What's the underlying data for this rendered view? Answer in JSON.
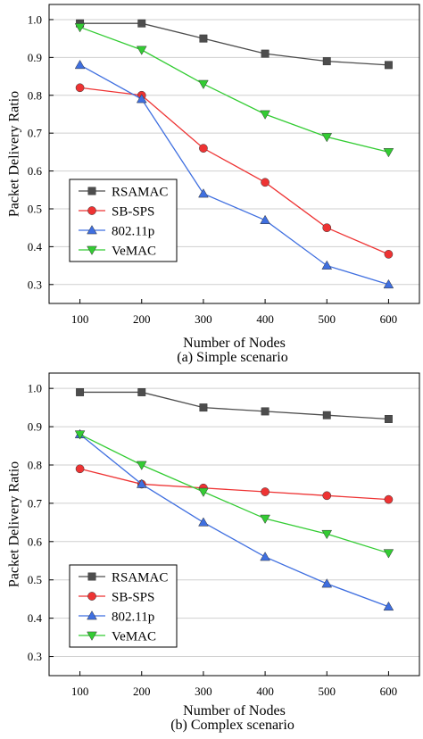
{
  "colors": {
    "RSAMAC": "#4d4d4d",
    "SB-SPS": "#ee3333",
    "802.11p": "#3f6fe0",
    "VeMAC": "#33cc33",
    "grid": "#cfcfcf",
    "axis": "#000000"
  },
  "chart_data": [
    {
      "type": "line",
      "x": [
        100,
        200,
        300,
        400,
        500,
        600
      ],
      "xlabel": "Number of Nodes",
      "ylabel": "Packet Delivery Ratio",
      "caption": "(a) Simple scenario",
      "xlim": [
        50,
        650
      ],
      "ylim": [
        0.25,
        1.04
      ],
      "yticks": [
        "0.3",
        "0.4",
        "0.5",
        "0.6",
        "0.7",
        "0.8",
        "0.9",
        "1.0"
      ],
      "xticks": [
        "100",
        "200",
        "300",
        "400",
        "500",
        "600"
      ],
      "grid": true,
      "legend_position": "bottom-left",
      "series": [
        {
          "name": "RSAMAC",
          "marker": "square",
          "values": [
            0.99,
            0.99,
            0.95,
            0.91,
            0.89,
            0.88
          ]
        },
        {
          "name": "SB-SPS",
          "marker": "circle",
          "values": [
            0.82,
            0.8,
            0.66,
            0.57,
            0.45,
            0.38
          ]
        },
        {
          "name": "802.11p",
          "marker": "triangle-up",
          "values": [
            0.88,
            0.79,
            0.54,
            0.47,
            0.35,
            0.3
          ]
        },
        {
          "name": "VeMAC",
          "marker": "triangle-down",
          "values": [
            0.98,
            0.92,
            0.83,
            0.75,
            0.69,
            0.65
          ]
        }
      ]
    },
    {
      "type": "line",
      "x": [
        100,
        200,
        300,
        400,
        500,
        600
      ],
      "xlabel": "Number of Nodes",
      "ylabel": "Packet Delivery Ratio",
      "caption": "(b) Complex scenario",
      "xlim": [
        50,
        650
      ],
      "ylim": [
        0.25,
        1.04
      ],
      "yticks": [
        "0.3",
        "0.4",
        "0.5",
        "0.6",
        "0.7",
        "0.8",
        "0.9",
        "1.0"
      ],
      "xticks": [
        "100",
        "200",
        "300",
        "400",
        "500",
        "600"
      ],
      "grid": true,
      "legend_position": "bottom-left",
      "series": [
        {
          "name": "RSAMAC",
          "marker": "square",
          "values": [
            0.99,
            0.99,
            0.95,
            0.94,
            0.93,
            0.92
          ]
        },
        {
          "name": "SB-SPS",
          "marker": "circle",
          "values": [
            0.79,
            0.75,
            0.74,
            0.73,
            0.72,
            0.71
          ]
        },
        {
          "name": "802.11p",
          "marker": "triangle-up",
          "values": [
            0.88,
            0.75,
            0.65,
            0.56,
            0.49,
            0.43
          ]
        },
        {
          "name": "VeMAC",
          "marker": "triangle-down",
          "values": [
            0.88,
            0.8,
            0.73,
            0.66,
            0.62,
            0.57
          ]
        }
      ]
    }
  ]
}
